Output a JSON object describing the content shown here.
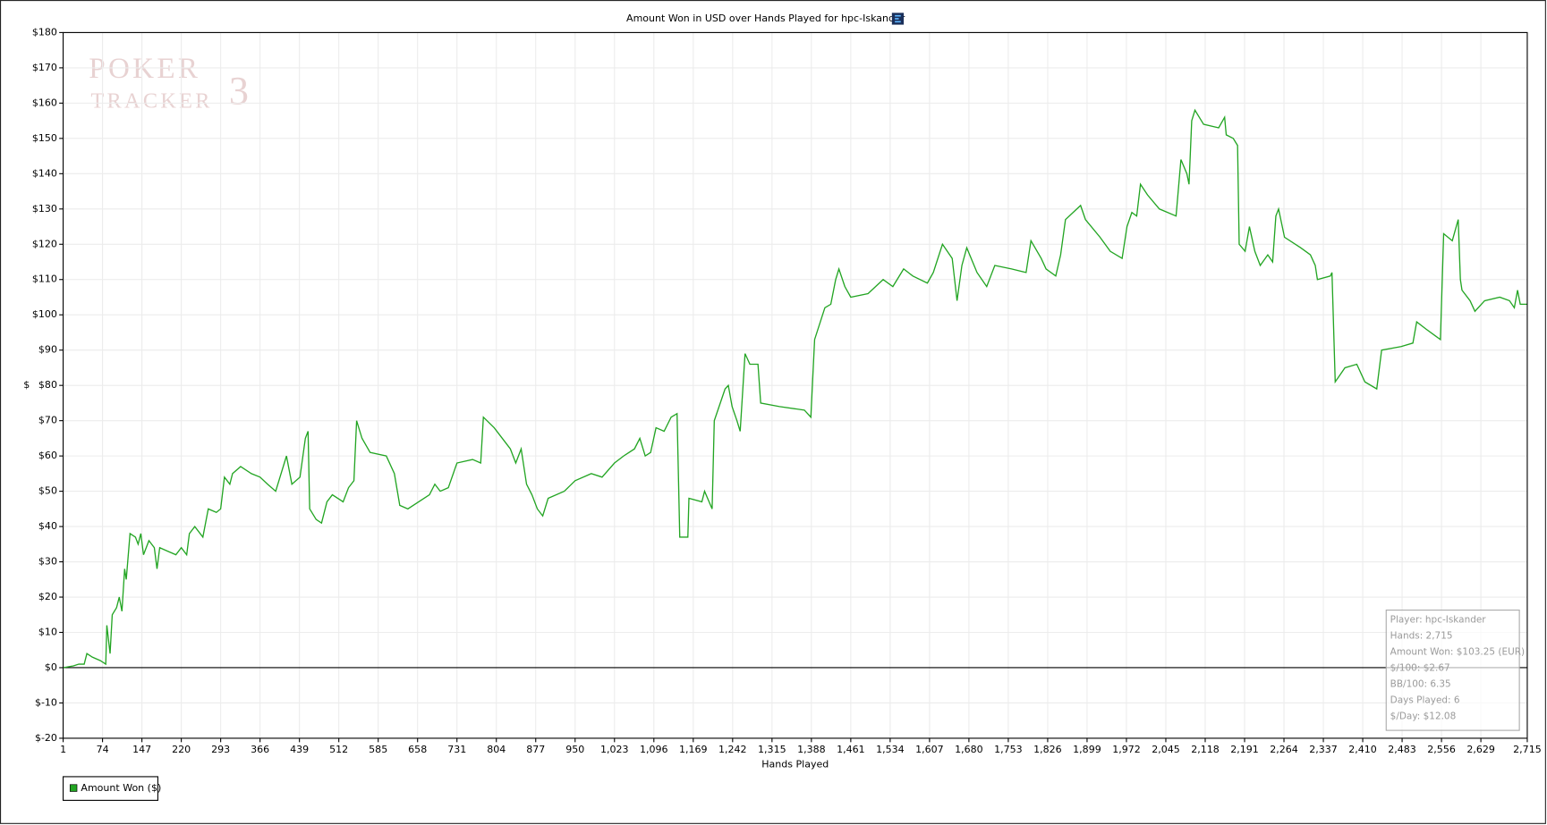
{
  "chart_data": {
    "type": "line",
    "title": "Amount Won in USD over Hands Played for hpc-Iskander",
    "watermark": [
      "POKER",
      "TRACKER",
      "3"
    ],
    "x_label": "Hands Played",
    "y_label": "$",
    "xlim": [
      1,
      2715
    ],
    "ylim": [
      -20,
      180
    ],
    "grid": true,
    "zero_line": true,
    "xticks": [
      1,
      74,
      147,
      220,
      293,
      366,
      439,
      512,
      585,
      658,
      731,
      804,
      877,
      950,
      {
        "value": 1023,
        "label": "1,023"
      },
      {
        "value": 1096,
        "label": "1,096"
      },
      {
        "value": 1169,
        "label": "1,169"
      },
      {
        "value": 1242,
        "label": "1,242"
      },
      {
        "value": 1315,
        "label": "1,315"
      },
      {
        "value": 1388,
        "label": "1,388"
      },
      {
        "value": 1461,
        "label": "1,461"
      },
      {
        "value": 1534,
        "label": "1,534"
      },
      {
        "value": 1607,
        "label": "1,607"
      },
      {
        "value": 1680,
        "label": "1,680"
      },
      {
        "value": 1753,
        "label": "1,753"
      },
      {
        "value": 1826,
        "label": "1,826"
      },
      {
        "value": 1899,
        "label": "1,899"
      },
      {
        "value": 1972,
        "label": "1,972"
      },
      {
        "value": 2045,
        "label": "2,045"
      },
      {
        "value": 2118,
        "label": "2,118"
      },
      {
        "value": 2191,
        "label": "2,191"
      },
      {
        "value": 2264,
        "label": "2,264"
      },
      {
        "value": 2337,
        "label": "2,337"
      },
      {
        "value": 2410,
        "label": "2,410"
      },
      {
        "value": 2483,
        "label": "2,483"
      },
      {
        "value": 2556,
        "label": "2,556"
      },
      {
        "value": 2629,
        "label": "2,629"
      },
      {
        "value": 2715,
        "label": "2,715"
      }
    ],
    "yticks": [
      {
        "value": -20,
        "label": "$-20"
      },
      {
        "value": -10,
        "label": "$-10"
      },
      {
        "value": 0,
        "label": "$0"
      },
      {
        "value": 10,
        "label": "$10"
      },
      {
        "value": 20,
        "label": "$20"
      },
      {
        "value": 30,
        "label": "$30"
      },
      {
        "value": 40,
        "label": "$40"
      },
      {
        "value": 50,
        "label": "$50"
      },
      {
        "value": 60,
        "label": "$60"
      },
      {
        "value": 70,
        "label": "$70"
      },
      {
        "value": 80,
        "label": "$80"
      },
      {
        "value": 90,
        "label": "$90"
      },
      {
        "value": 100,
        "label": "$100"
      },
      {
        "value": 110,
        "label": "$110"
      },
      {
        "value": 120,
        "label": "$120"
      },
      {
        "value": 130,
        "label": "$130"
      },
      {
        "value": 140,
        "label": "$140"
      },
      {
        "value": 150,
        "label": "$150"
      },
      {
        "value": 160,
        "label": "$160"
      },
      {
        "value": 170,
        "label": "$170"
      },
      {
        "value": 180,
        "label": "$180"
      }
    ],
    "x": [
      1,
      20,
      30,
      40,
      45,
      55,
      70,
      80,
      82,
      88,
      92,
      100,
      105,
      110,
      115,
      118,
      125,
      135,
      140,
      145,
      150,
      160,
      170,
      175,
      180,
      195,
      210,
      220,
      230,
      235,
      245,
      260,
      270,
      285,
      293,
      300,
      310,
      315,
      330,
      350,
      366,
      380,
      395,
      405,
      415,
      425,
      440,
      450,
      455,
      458,
      470,
      480,
      490,
      500,
      520,
      530,
      540,
      545,
      555,
      570,
      600,
      615,
      625,
      640,
      660,
      680,
      690,
      700,
      715,
      731,
      760,
      775,
      780,
      800,
      820,
      830,
      840,
      850,
      860,
      870,
      880,
      890,
      900,
      930,
      950,
      980,
      1000,
      1023,
      1040,
      1060,
      1070,
      1080,
      1090,
      1100,
      1115,
      1128,
      1139,
      1144,
      1159,
      1161,
      1185,
      1190,
      1204,
      1208,
      1228,
      1234,
      1241,
      1250,
      1256,
      1265,
      1274,
      1289,
      1294,
      1329,
      1375,
      1387,
      1394,
      1413,
      1424,
      1433,
      1439,
      1450,
      1461,
      1493,
      1521,
      1539,
      1559,
      1576,
      1603,
      1614,
      1631,
      1649,
      1658,
      1667,
      1676,
      1695,
      1713,
      1728,
      1759,
      1786,
      1795,
      1814,
      1823,
      1841,
      1850,
      1859,
      1887,
      1896,
      1923,
      1942,
      1964,
      1973,
      1982,
      1991,
      1998,
      2011,
      2033,
      2064,
      2073,
      2084,
      2088,
      2093,
      2099,
      2115,
      2143,
      2154,
      2157,
      2170,
      2178,
      2181,
      2192,
      2200,
      2210,
      2220,
      2234,
      2243,
      2249,
      2254,
      2265,
      2295,
      2313,
      2322,
      2326,
      2350,
      2353,
      2359,
      2368,
      2377,
      2399,
      2414,
      2436,
      2445,
      2481,
      2503,
      2510,
      2527,
      2545,
      2554,
      2560,
      2576,
      2587,
      2591,
      2594,
      2609,
      2618,
      2636,
      2664,
      2682,
      2691,
      2697,
      2702,
      2715
    ],
    "series": [
      {
        "name": "Amount Won ($)",
        "color": "#23a523",
        "values": [
          0,
          0.5,
          1,
          1,
          4,
          3,
          2,
          1,
          12,
          4,
          15,
          17,
          20,
          16,
          28,
          25,
          38,
          37,
          35,
          38,
          32,
          36,
          34,
          28,
          34,
          33,
          32,
          34,
          32,
          38,
          40,
          37,
          45,
          44,
          45,
          54,
          52,
          55,
          57,
          55,
          54,
          52,
          50,
          55,
          60,
          52,
          54,
          65,
          67,
          45,
          42,
          41,
          47,
          49,
          47,
          51,
          53,
          70,
          65,
          61,
          60,
          55,
          46,
          45,
          47,
          49,
          52,
          50,
          51,
          58,
          59,
          58,
          71,
          68,
          64,
          62,
          58,
          62,
          52,
          49,
          45,
          43,
          48,
          50,
          53,
          55,
          54,
          58,
          60,
          62,
          65,
          60,
          61,
          68,
          67,
          71,
          72,
          37,
          37,
          48,
          47,
          50,
          45,
          70,
          79,
          80,
          74,
          70,
          67,
          89,
          86,
          86,
          75,
          74,
          73,
          71,
          93,
          102,
          103,
          110,
          113,
          108,
          105,
          106,
          110,
          108,
          113,
          111,
          109,
          112,
          120,
          116,
          104,
          114,
          119,
          112,
          108,
          114,
          113,
          112,
          121,
          116,
          113,
          111,
          117,
          127,
          131,
          127,
          122,
          118,
          116,
          125,
          129,
          128,
          137,
          134,
          130,
          128,
          144,
          140,
          137,
          155,
          158,
          154,
          153,
          156,
          151,
          150,
          148,
          120,
          118,
          125,
          118,
          114,
          117,
          115,
          128,
          130,
          122,
          119,
          117,
          114,
          110,
          111,
          112,
          81,
          83,
          85,
          86,
          81,
          79,
          90,
          91,
          92,
          98,
          96,
          94,
          93,
          123,
          121,
          127,
          110,
          107,
          104,
          101,
          104,
          105,
          104,
          102,
          107,
          103,
          103
        ]
      }
    ],
    "stats": [
      "Player: hpc-Iskander",
      "Hands: 2,715",
      "Amount Won: $103.25 (EUR)",
      "$/100: $2.67",
      "BB/100: 6.35",
      "Days Played: 6",
      "$/Day: $12.08"
    ]
  }
}
